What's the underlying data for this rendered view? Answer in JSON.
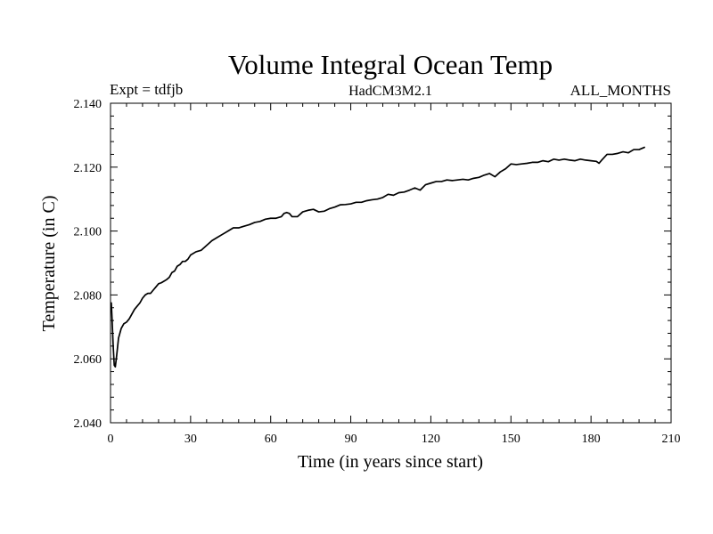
{
  "chart_data": {
    "type": "line",
    "title": "Volume Integral Ocean Temp",
    "subtitle_left": "Expt = tdfjb",
    "subtitle_center": "HadCM3M2.1",
    "subtitle_right": "ALL_MONTHS",
    "xlabel": "Time (in years since start)",
    "ylabel": "Temperature (in C)",
    "xlim": [
      0,
      210
    ],
    "ylim": [
      2.04,
      2.14
    ],
    "x_ticks": [
      0,
      30,
      60,
      90,
      120,
      150,
      180,
      210
    ],
    "x_tick_labels": [
      "0",
      "30",
      "60",
      "90",
      "120",
      "150",
      "180",
      "210"
    ],
    "y_ticks": [
      2.04,
      2.06,
      2.08,
      2.1,
      2.12,
      2.14
    ],
    "y_tick_labels": [
      "2.040",
      "2.060",
      "2.080",
      "2.100",
      "2.120",
      "2.140"
    ],
    "x_minor_step": 6,
    "y_minor_step": 0.004,
    "grid": false,
    "line_color": "#000000",
    "series": [
      {
        "name": "Volume Integral Ocean Temp",
        "x": [
          0.3,
          0.6,
          1.0,
          1.4,
          1.8,
          2.3,
          3,
          4,
          5,
          6,
          7,
          8,
          9,
          10,
          11,
          12,
          13,
          14,
          15,
          16,
          17,
          18,
          19,
          20,
          21,
          22,
          23,
          24,
          25,
          26,
          27,
          28,
          29,
          30,
          32,
          34,
          36,
          38,
          40,
          42,
          44,
          46,
          48,
          50,
          52,
          54,
          56,
          58,
          60,
          62,
          64,
          65,
          66,
          67,
          68,
          70,
          72,
          74,
          76,
          78,
          80,
          82,
          84,
          86,
          88,
          90,
          92,
          94,
          96,
          98,
          100,
          102,
          104,
          106,
          108,
          110,
          112,
          114,
          116,
          118,
          120,
          122,
          124,
          126,
          128,
          130,
          132,
          134,
          136,
          138,
          140,
          142,
          144,
          146,
          148,
          150,
          152,
          154,
          156,
          158,
          160,
          162,
          164,
          166,
          168,
          170,
          172,
          174,
          176,
          178,
          180,
          182,
          183,
          184,
          186,
          188,
          190,
          192,
          194,
          196,
          198,
          200
        ],
        "values": [
          2.0775,
          2.072,
          2.064,
          2.058,
          2.0575,
          2.061,
          2.0665,
          2.0695,
          2.071,
          2.0715,
          2.0725,
          2.074,
          2.0755,
          2.0765,
          2.0775,
          2.079,
          2.08,
          2.0805,
          2.0805,
          2.0815,
          2.0825,
          2.0835,
          2.0838,
          2.0843,
          2.0848,
          2.0855,
          2.087,
          2.0875,
          2.089,
          2.0895,
          2.0905,
          2.0905,
          2.0912,
          2.0925,
          2.0935,
          2.094,
          2.0955,
          2.097,
          2.098,
          2.099,
          2.1,
          2.101,
          2.101,
          2.1015,
          2.102,
          2.1027,
          2.103,
          2.1037,
          2.104,
          2.104,
          2.1045,
          2.1055,
          2.1058,
          2.1055,
          2.1045,
          2.1045,
          2.106,
          2.1065,
          2.1068,
          2.106,
          2.1062,
          2.107,
          2.1075,
          2.1082,
          2.1083,
          2.1085,
          2.109,
          2.109,
          2.1095,
          2.1098,
          2.11,
          2.1105,
          2.1115,
          2.1112,
          2.112,
          2.1122,
          2.1128,
          2.1135,
          2.1128,
          2.1145,
          2.115,
          2.1155,
          2.1155,
          2.116,
          2.1158,
          2.116,
          2.1162,
          2.116,
          2.1165,
          2.1168,
          2.1175,
          2.118,
          2.117,
          2.1185,
          2.1195,
          2.121,
          2.1208,
          2.121,
          2.1212,
          2.1215,
          2.1215,
          2.122,
          2.1217,
          2.1225,
          2.1222,
          2.1225,
          2.1222,
          2.122,
          2.1225,
          2.1222,
          2.122,
          2.1218,
          2.1212,
          2.1222,
          2.124,
          2.124,
          2.1243,
          2.1248,
          2.1245,
          2.1255,
          2.1255,
          2.1262
        ]
      }
    ]
  }
}
